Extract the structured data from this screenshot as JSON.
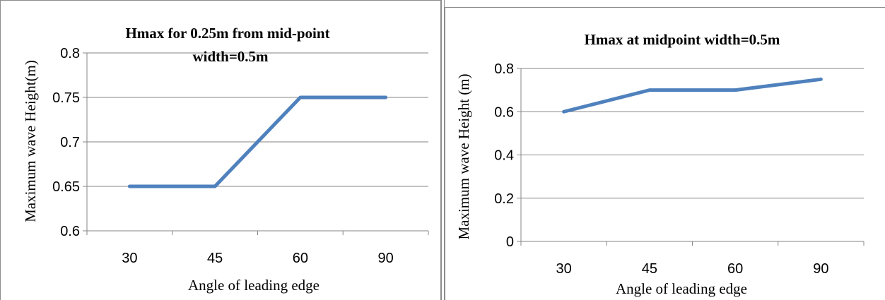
{
  "chart_data": [
    {
      "type": "line",
      "title_line1": "Hmax for 0.25m from mid-point",
      "title_line2": "width=0.5m",
      "xlabel": "Angle of leading edge",
      "ylabel": "Maximum wave Height(m)",
      "categories": [
        "30",
        "45",
        "60",
        "90"
      ],
      "series": [
        {
          "values": [
            0.65,
            0.65,
            0.75,
            0.75
          ]
        }
      ],
      "ylim": [
        0.6,
        0.8
      ],
      "yticks": [
        0.6,
        0.65,
        0.7,
        0.75,
        0.8
      ],
      "ytick_labels": [
        "0.6",
        "0.65",
        "0.7",
        "0.75",
        "0.8"
      ],
      "grid": true,
      "line_color": "#4f81bd"
    },
    {
      "type": "line",
      "title_line1": "Hmax at midpoint width=0.5m",
      "title_line2": "",
      "xlabel": "Angle of leading edge",
      "ylabel": "Maximum wave Height (m)",
      "categories": [
        "30",
        "45",
        "60",
        "90"
      ],
      "series": [
        {
          "values": [
            0.6,
            0.7,
            0.7,
            0.75
          ]
        }
      ],
      "ylim": [
        0,
        0.8
      ],
      "yticks": [
        0,
        0.2,
        0.4,
        0.6,
        0.8
      ],
      "ytick_labels": [
        "0",
        "0.2",
        "0.4",
        "0.6",
        "0.8"
      ],
      "grid": true,
      "line_color": "#4f81bd"
    }
  ]
}
